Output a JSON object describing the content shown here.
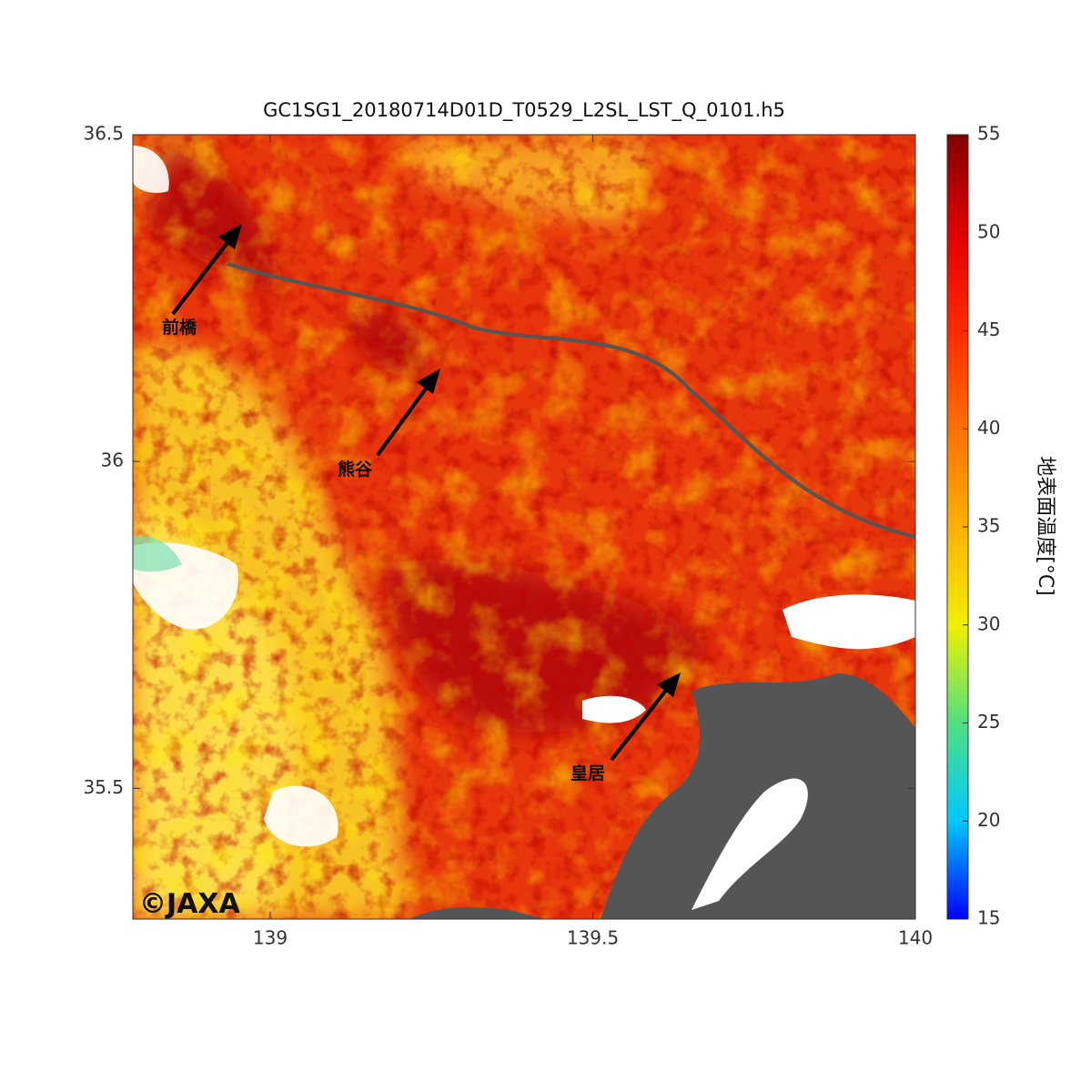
{
  "title": "GC1SG1_20180714D01D_T0529_L2SL_LST_Q_0101.h5",
  "x_axis": {
    "range": [
      138.787,
      140
    ],
    "ticks": [
      139,
      139.5,
      140
    ]
  },
  "y_axis": {
    "range": [
      35.3,
      36.5
    ],
    "ticks": [
      35.5,
      36,
      36.5
    ]
  },
  "colorbar": {
    "label": "地表面温度[°C]",
    "range": [
      15,
      55
    ],
    "ticks": [
      15,
      20,
      25,
      30,
      35,
      40,
      45,
      50,
      55
    ],
    "colors": [
      "#0000ff",
      "#00c8ff",
      "#50e080",
      "#f0f000",
      "#ffb000",
      "#ff7000",
      "#ff2a00",
      "#e00000",
      "#800000"
    ]
  },
  "annotations": [
    {
      "label": "前橋"
    },
    {
      "label": "熊谷"
    },
    {
      "label": "皇居"
    }
  ],
  "watermark": "©JAXA"
}
